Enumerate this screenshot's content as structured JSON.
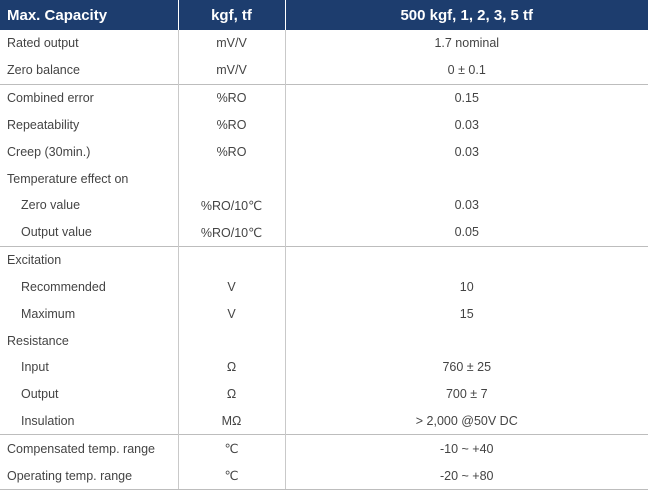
{
  "header": {
    "col1": "Max. Capacity",
    "col2": "kgf, tf",
    "col3": "500 kgf, 1, 2, 3, 5 tf"
  },
  "rows": [
    {
      "label": "Rated output",
      "unit": "mV/V",
      "value": "1.7 nominal"
    },
    {
      "label": "Zero balance",
      "unit": "mV/V",
      "value": "0 ± 0.1"
    },
    {
      "label": "Combined error",
      "unit": "%RO",
      "value": "0.15"
    },
    {
      "label": "Repeatability",
      "unit": "%RO",
      "value": "0.03"
    },
    {
      "label": "Creep (30min.)",
      "unit": "%RO",
      "value": "0.03"
    },
    {
      "label": "Temperature effect on",
      "unit": "",
      "value": ""
    },
    {
      "label": "Zero value",
      "unit": "%RO/10℃",
      "value": "0.03"
    },
    {
      "label": "Output  value",
      "unit": "%RO/10℃",
      "value": "0.05"
    },
    {
      "label": "Excitation",
      "unit": "",
      "value": ""
    },
    {
      "label": "Recommended",
      "unit": "V",
      "value": "10"
    },
    {
      "label": "Maximum",
      "unit": "V",
      "value": "15"
    },
    {
      "label": "Resistance",
      "unit": "",
      "value": ""
    },
    {
      "label": "Input",
      "unit": "Ω",
      "value": "760 ± 25"
    },
    {
      "label": "Output",
      "unit": "Ω",
      "value": "700 ± 7"
    },
    {
      "label": "Insulation",
      "unit": "MΩ",
      "value": "> 2,000 @50V DC"
    },
    {
      "label": "Compensated temp. range",
      "unit": "℃",
      "value": "-10 ~ +40"
    },
    {
      "label": "Operating temp. range",
      "unit": "℃",
      "value": "-20 ~ +80"
    }
  ]
}
